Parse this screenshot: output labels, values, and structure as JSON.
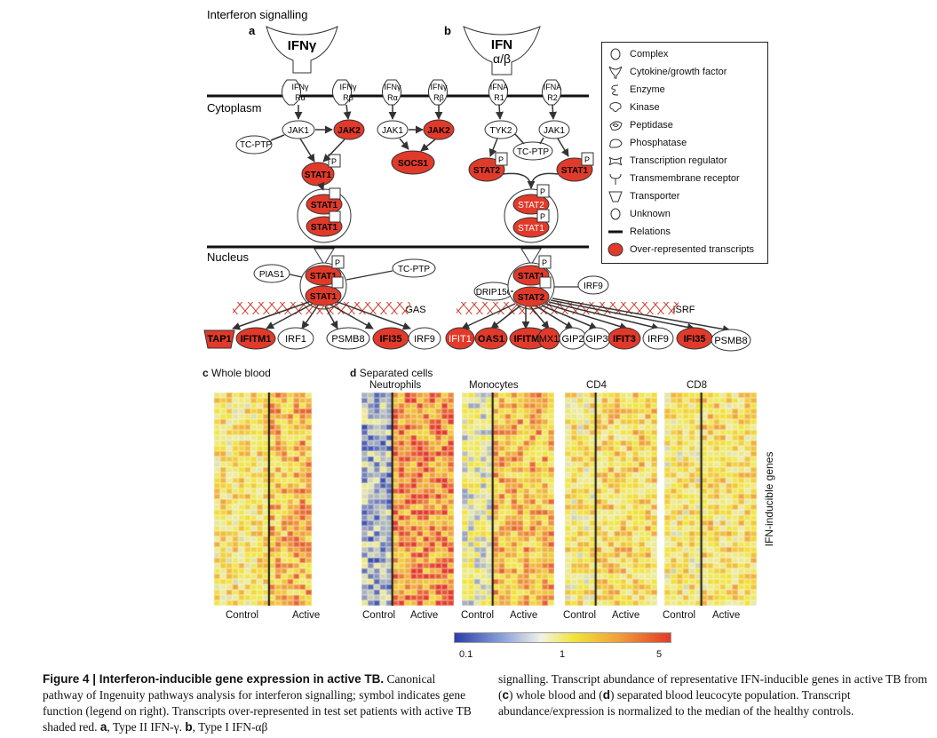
{
  "figure": {
    "section_title": "Interferon signalling",
    "panel_a": "a",
    "panel_b": "b",
    "panel_c": "c",
    "panel_d": "d",
    "region_cytoplasm": "Cytoplasm",
    "region_nucleus": "Nucleus",
    "whole_blood_label": "Whole blood",
    "separated_cells_label": "Separated cells",
    "ifn_inducible_label": "IFN-inducible genes",
    "colorbar_ticks": [
      "0.1",
      "1",
      "5"
    ],
    "colorbar_colors": [
      "#2b3fa8",
      "#ffffff",
      "#f1e53a",
      "#e23a2a"
    ]
  },
  "pathway_a": {
    "cytokine": "IFNγ",
    "receptors": [
      "IFNγ Rα",
      "IFNγ Rβ",
      "IFNγ Rα",
      "IFNγ Rβ"
    ],
    "nodes": [
      "JAK1",
      "JAK2",
      "JAK1",
      "JAK2",
      "TC-PTP",
      "SOCS1",
      "STAT1",
      "STAT1",
      "STAT1",
      "PIAS1",
      "STAT1",
      "STAT1",
      "TC-PTP",
      "GAS"
    ],
    "targets": [
      "TAP1",
      "IFITM1",
      "IRF1",
      "PSMB8",
      "IFI35",
      "IRF9"
    ]
  },
  "pathway_b": {
    "cytokine": "IFN",
    "cytokine_sub": "α/β",
    "receptors": [
      "IFNA R1",
      "IFNA R2"
    ],
    "nodes": [
      "TYK2",
      "JAK1",
      "TC-PTP",
      "STAT2",
      "STAT1",
      "STAT2",
      "STAT1",
      "STAT1",
      "STAT2",
      "DRIP150",
      "IRF9",
      "ISRF"
    ],
    "targets": [
      "IFIT1",
      "OAS1",
      "IFITM1",
      "MX1",
      "GIP2",
      "GIP3",
      "IFIT3",
      "IRF9",
      "IFI35",
      "PSMB8"
    ]
  },
  "legend": {
    "items": [
      {
        "icon": "complex-icon",
        "label": "Complex"
      },
      {
        "icon": "cytokine-icon",
        "label": "Cytokine/growth factor"
      },
      {
        "icon": "enzyme-icon",
        "label": "Enzyme"
      },
      {
        "icon": "kinase-icon",
        "label": "Kinase"
      },
      {
        "icon": "peptidase-icon",
        "label": "Peptidase"
      },
      {
        "icon": "phosphatase-icon",
        "label": "Phosphatase"
      },
      {
        "icon": "transcription-regulator-icon",
        "label": "Transcription regulator"
      },
      {
        "icon": "transmembrane-receptor-icon",
        "label": "Transmembrane receptor"
      },
      {
        "icon": "transporter-icon",
        "label": "Transporter"
      },
      {
        "icon": "unknown-icon",
        "label": "Unknown"
      },
      {
        "icon": "relations-icon",
        "label": "Relations"
      },
      {
        "icon": "over-represented-icon",
        "label": "Over-represented transcripts"
      }
    ],
    "highlight_color": "#e23a2a"
  },
  "heatmaps": [
    {
      "title": "",
      "groups": [
        "Control",
        "Active"
      ]
    },
    {
      "title": "Neutrophils",
      "groups": [
        "Control",
        "Active"
      ]
    },
    {
      "title": "Monocytes",
      "groups": [
        "Control",
        "Active"
      ]
    },
    {
      "title": "CD4",
      "groups": [
        "Control",
        "Active"
      ]
    },
    {
      "title": "CD8",
      "groups": [
        "Control",
        "Active"
      ]
    }
  ],
  "caption": {
    "fig_label": "Figure 4 | Interferon-inducible gene expression in active TB.",
    "left_text_1": " Canonical pathway of Ingenuity pathways analysis for interferon signalling; symbol indicates gene function (legend on right). Transcripts over-represented in test set patients with active TB shaded red. ",
    "a_label": "a",
    "a_text": ", Type II IFN-γ. ",
    "b_label": "b",
    "b_text": ", Type I IFN-αβ",
    "right_text_1": "signalling. Transcript abundance of representative IFN-inducible genes in active TB from (",
    "c_label": "c",
    "right_text_2": ") whole blood and (",
    "d_label": "d",
    "right_text_3": ") separated blood leucocyte population. Transcript abundance/expression is normalized to the median of the healthy controls."
  }
}
